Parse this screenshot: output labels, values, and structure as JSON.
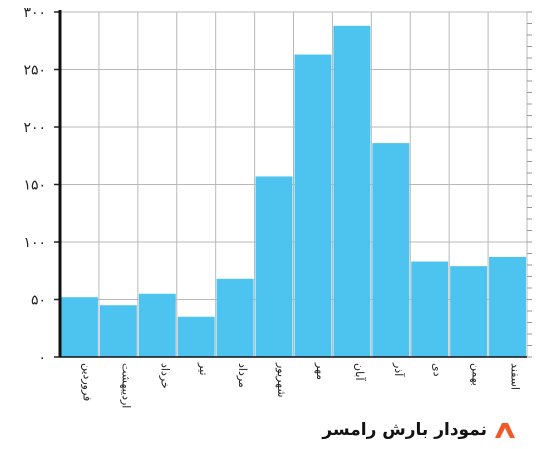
{
  "chart_data": {
    "type": "bar",
    "title": "نمودار بارش رامسر",
    "xlabel": "",
    "ylabel": "",
    "categories": [
      "فروردین",
      "اردیبهشت",
      "خرداد",
      "تیر",
      "مرداد",
      "شهریور",
      "مهر",
      "آبان",
      "آذر",
      "دی",
      "بهمن",
      "اسفند"
    ],
    "values": [
      52,
      45,
      55,
      35,
      68,
      157,
      263,
      288,
      186,
      83,
      79,
      87
    ],
    "ylim": [
      0,
      300
    ],
    "yticks": [
      0,
      50,
      100,
      150,
      200,
      250,
      300
    ],
    "ytick_labels": [
      "۰",
      "۵۰",
      "۱۰۰",
      "۱۵۰",
      "۲۰۰",
      "۲۵۰",
      "۳۰۰"
    ],
    "grid": true,
    "bar_color": "#4dc4ef",
    "grid_color": "#b8b8b8"
  },
  "caption": {
    "text": "نمودار بارش رامسر",
    "icon": "orange-arch-icon",
    "icon_color": "#f05a28"
  }
}
